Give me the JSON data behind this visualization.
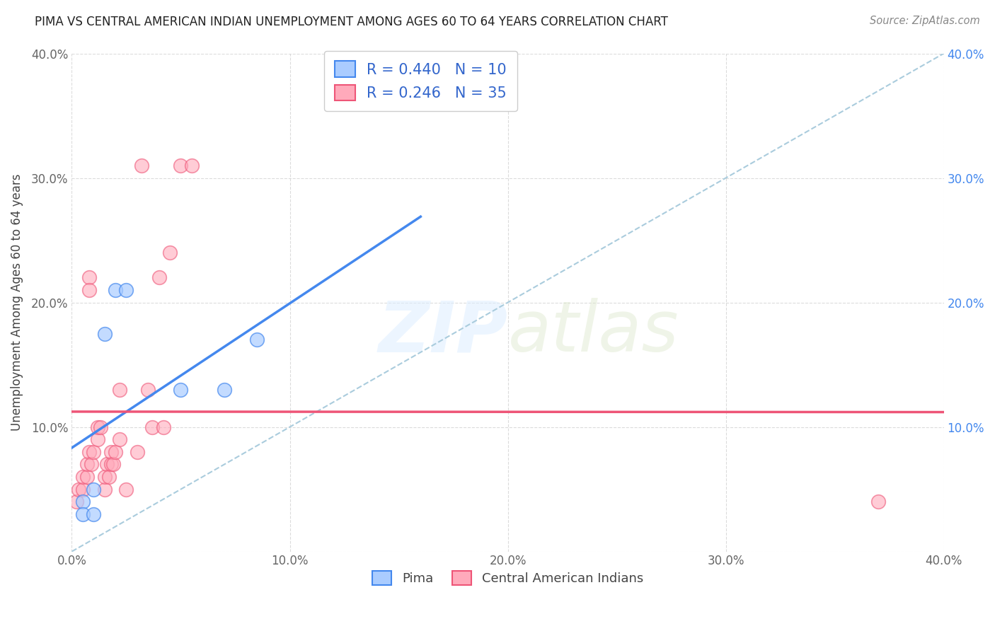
{
  "title": "PIMA VS CENTRAL AMERICAN INDIAN UNEMPLOYMENT AMONG AGES 60 TO 64 YEARS CORRELATION CHART",
  "source": "Source: ZipAtlas.com",
  "ylabel": "Unemployment Among Ages 60 to 64 years",
  "xlim": [
    0.0,
    0.4
  ],
  "ylim": [
    0.0,
    0.4
  ],
  "xticks": [
    0.0,
    0.1,
    0.2,
    0.3,
    0.4
  ],
  "yticks": [
    0.0,
    0.1,
    0.2,
    0.3,
    0.4
  ],
  "xticklabels": [
    "0.0%",
    "10.0%",
    "20.0%",
    "30.0%",
    "40.0%"
  ],
  "yticklabels": [
    "",
    "10.0%",
    "20.0%",
    "30.0%",
    "40.0%"
  ],
  "right_yticklabels": [
    "",
    "10.0%",
    "20.0%",
    "30.0%",
    "40.0%"
  ],
  "background_color": "#ffffff",
  "grid_color": "#cccccc",
  "pima_color": "#aaccff",
  "central_color": "#ffaabb",
  "pima_R": 0.44,
  "pima_N": 10,
  "central_R": 0.246,
  "central_N": 35,
  "pima_scatter": [
    [
      0.005,
      0.04
    ],
    [
      0.005,
      0.03
    ],
    [
      0.01,
      0.03
    ],
    [
      0.01,
      0.05
    ],
    [
      0.015,
      0.175
    ],
    [
      0.02,
      0.21
    ],
    [
      0.025,
      0.21
    ],
    [
      0.05,
      0.13
    ],
    [
      0.07,
      0.13
    ],
    [
      0.085,
      0.17
    ]
  ],
  "central_scatter": [
    [
      0.002,
      0.04
    ],
    [
      0.003,
      0.05
    ],
    [
      0.005,
      0.05
    ],
    [
      0.005,
      0.06
    ],
    [
      0.007,
      0.06
    ],
    [
      0.007,
      0.07
    ],
    [
      0.008,
      0.08
    ],
    [
      0.008,
      0.22
    ],
    [
      0.008,
      0.21
    ],
    [
      0.009,
      0.07
    ],
    [
      0.01,
      0.08
    ],
    [
      0.012,
      0.09
    ],
    [
      0.012,
      0.1
    ],
    [
      0.013,
      0.1
    ],
    [
      0.015,
      0.05
    ],
    [
      0.015,
      0.06
    ],
    [
      0.016,
      0.07
    ],
    [
      0.017,
      0.06
    ],
    [
      0.018,
      0.07
    ],
    [
      0.018,
      0.08
    ],
    [
      0.019,
      0.07
    ],
    [
      0.02,
      0.08
    ],
    [
      0.022,
      0.09
    ],
    [
      0.022,
      0.13
    ],
    [
      0.025,
      0.05
    ],
    [
      0.03,
      0.08
    ],
    [
      0.032,
      0.31
    ],
    [
      0.035,
      0.13
    ],
    [
      0.037,
      0.1
    ],
    [
      0.04,
      0.22
    ],
    [
      0.042,
      0.1
    ],
    [
      0.045,
      0.24
    ],
    [
      0.05,
      0.31
    ],
    [
      0.055,
      0.31
    ],
    [
      0.37,
      0.04
    ]
  ],
  "pima_line_color": "#4488ee",
  "central_line_color": "#ee5577",
  "dashed_line_color": "#aaccdd",
  "legend_color": "#3366cc",
  "title_fontsize": 12,
  "tick_fontsize": 12,
  "ylabel_fontsize": 12
}
